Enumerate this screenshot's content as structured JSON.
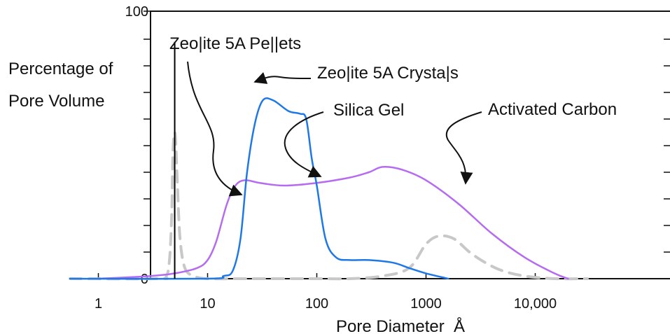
{
  "chart_data": {
    "type": "line",
    "title": "",
    "xlabel": "Pore Diameter  Å",
    "ylabel": "Percentage of\nPore Volume",
    "x_scale": "log",
    "xlim": [
      0.55,
      30000
    ],
    "ylim": [
      0,
      100
    ],
    "x_ticks": [
      {
        "value": 1,
        "label": "1"
      },
      {
        "value": 10,
        "label": "10"
      },
      {
        "value": 100,
        "label": "100"
      },
      {
        "value": 1000,
        "label": "1000"
      },
      {
        "value": 10000,
        "label": "10,000"
      }
    ],
    "y_ticks": [
      {
        "value": 0,
        "label": "0"
      },
      {
        "value": 100,
        "label": "100"
      }
    ],
    "grid": false,
    "series": [
      {
        "name": "Zeolite 5A Crystals",
        "style": "vertical-line",
        "color": "#000000",
        "x": [
          5,
          5
        ],
        "y": [
          0,
          89
        ]
      },
      {
        "name": "Zeolite 5A Pellets",
        "style": "dashed",
        "color": "#c8c8c8",
        "x": [
          0.55,
          3.5,
          4.2,
          4.5,
          4.7,
          4.8,
          4.9,
          5.0,
          5.1,
          5.3,
          5.6,
          6.2,
          7.5,
          10,
          20,
          100,
          200,
          400,
          700,
          1000,
          1300,
          1800,
          2500,
          3500,
          5000,
          8000,
          15000,
          30000
        ],
        "y": [
          0,
          0,
          1,
          8,
          25,
          45,
          53,
          55,
          52,
          35,
          15,
          4,
          1,
          0,
          0,
          0,
          0,
          1,
          4,
          13,
          16,
          15,
          10,
          6,
          3,
          1,
          0,
          0
        ]
      },
      {
        "name": "Silica Gel",
        "style": "solid",
        "color": "#1e78e6",
        "x": [
          0.55,
          10,
          14,
          17,
          20,
          23,
          27,
          32,
          40,
          55,
          70,
          80,
          90,
          100,
          120,
          150,
          200,
          300,
          500,
          700,
          1000,
          1600
        ],
        "y": [
          0,
          0,
          1,
          3,
          15,
          40,
          58,
          67,
          67,
          63,
          62,
          60,
          45,
          35,
          15,
          8,
          7,
          7,
          6,
          4,
          2,
          0
        ]
      },
      {
        "name": "Activated Carbon",
        "style": "solid",
        "color": "#b56cf0",
        "x": [
          1,
          3,
          5,
          8,
          10,
          12,
          15,
          18,
          22,
          30,
          50,
          100,
          200,
          300,
          400,
          600,
          1000,
          2000,
          4000,
          8000,
          15000,
          20000
        ],
        "y": [
          0,
          1,
          2,
          4,
          7,
          14,
          28,
          35,
          37,
          36,
          35,
          36,
          38,
          40,
          42,
          41,
          37,
          28,
          17,
          8,
          2,
          0
        ]
      }
    ],
    "annotations": [
      {
        "text": "Zeo|ite 5A Pe||ets"
      },
      {
        "text": "Zeo|ite 5A Crysta|s"
      },
      {
        "text": "Silica Gel"
      },
      {
        "text": "Activated Carbon"
      }
    ]
  }
}
